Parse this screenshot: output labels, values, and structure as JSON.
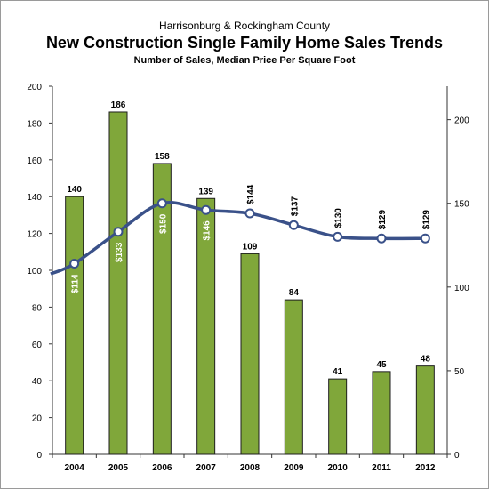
{
  "header": {
    "subtitle_top": "Harrisonburg & Rockingham County",
    "title": "New Construction Single Family Home Sales Trends",
    "subtitle": "Number of Sales, Median Price Per Square Foot"
  },
  "colors": {
    "bar_fill": "#80a73a",
    "bar_stroke": "#1e1e1e",
    "line": "#3a5189",
    "marker_fill": "#ffffff",
    "label_on_bar": "#ffffff",
    "label_off_bar": "#000000"
  },
  "chart_data": {
    "type": "bar+line",
    "categories": [
      "2004",
      "2005",
      "2006",
      "2007",
      "2008",
      "2009",
      "2010",
      "2011",
      "2012"
    ],
    "series": [
      {
        "axis": "left",
        "type": "bar",
        "values": [
          140,
          186,
          158,
          139,
          109,
          84,
          41,
          45,
          48
        ],
        "labels": [
          "140",
          "186",
          "158",
          "139",
          "109",
          "84",
          "41",
          "45",
          "48"
        ]
      },
      {
        "axis": "right",
        "type": "line",
        "values": [
          114,
          133,
          150,
          146,
          144,
          137,
          130,
          129,
          129
        ],
        "labels": [
          "$114",
          "$133",
          "$150",
          "$146",
          "$144",
          "$137",
          "$130",
          "$129",
          "$129"
        ],
        "label_position": [
          "on-bar",
          "on-bar",
          "on-bar",
          "on-bar",
          "above",
          "above",
          "above",
          "above",
          "above"
        ]
      }
    ],
    "left_axis": {
      "min": 0,
      "max": 200,
      "ticks": [
        "0",
        "20",
        "40",
        "60",
        "80",
        "100",
        "120",
        "140",
        "160",
        "180",
        "200"
      ]
    },
    "right_axis": {
      "min": 0,
      "max": 220,
      "ticks": [
        "0",
        "50",
        "100",
        "150",
        "200"
      ]
    },
    "grid": false,
    "legend": "none"
  }
}
